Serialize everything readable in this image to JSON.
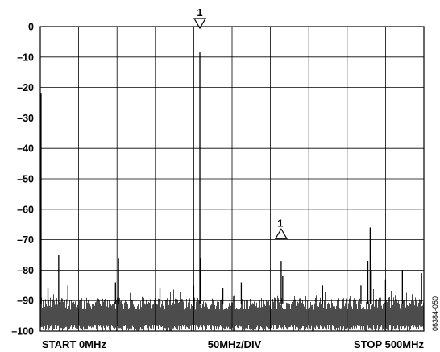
{
  "chart_data": {
    "type": "line",
    "title": "",
    "xlabel": "",
    "ylabel": "",
    "x_unit": "MHz",
    "xlim": [
      0,
      500
    ],
    "ylim": [
      -100,
      0
    ],
    "yticks": [
      0,
      -10,
      -20,
      -30,
      -40,
      -50,
      -60,
      -70,
      -80,
      -90,
      -100
    ],
    "ytick_labels": [
      "0",
      "–10",
      "–20",
      "–30",
      "–40",
      "–50",
      "–60",
      "–70",
      "–80",
      "–90",
      "–100"
    ],
    "x_divisions": 10,
    "grid": true,
    "axis_labels": {
      "start": "START 0MHz",
      "center": "50MHz/DIV",
      "stop": "STOP 500MHz"
    },
    "noise_floor": {
      "mean": -91,
      "range": [
        -100,
        -85
      ]
    },
    "series": [
      {
        "peaks": [
          {
            "x": 1,
            "y": -22
          },
          {
            "x": 10,
            "y": -86
          },
          {
            "x": 24,
            "y": -75
          },
          {
            "x": 36,
            "y": -85
          },
          {
            "x": 98,
            "y": -84
          },
          {
            "x": 102,
            "y": -76
          },
          {
            "x": 156,
            "y": -86
          },
          {
            "x": 200,
            "y": -85
          },
          {
            "x": 208,
            "y": -8.5
          },
          {
            "x": 209,
            "y": -76
          },
          {
            "x": 238,
            "y": -86
          },
          {
            "x": 262,
            "y": -84
          },
          {
            "x": 314,
            "y": -77
          },
          {
            "x": 316,
            "y": -82
          },
          {
            "x": 368,
            "y": -85
          },
          {
            "x": 418,
            "y": -85
          },
          {
            "x": 427,
            "y": -77
          },
          {
            "x": 430,
            "y": -66
          },
          {
            "x": 432,
            "y": -80
          },
          {
            "x": 450,
            "y": -83
          },
          {
            "x": 472,
            "y": -80
          },
          {
            "x": 497,
            "y": -81
          }
        ]
      }
    ],
    "markers": [
      {
        "label": "1",
        "x": 208,
        "y": 0,
        "shape": "triangle-down"
      },
      {
        "label": "1",
        "x": 314,
        "y": -67,
        "shape": "triangle-up"
      }
    ]
  },
  "side_label": "06384-050"
}
